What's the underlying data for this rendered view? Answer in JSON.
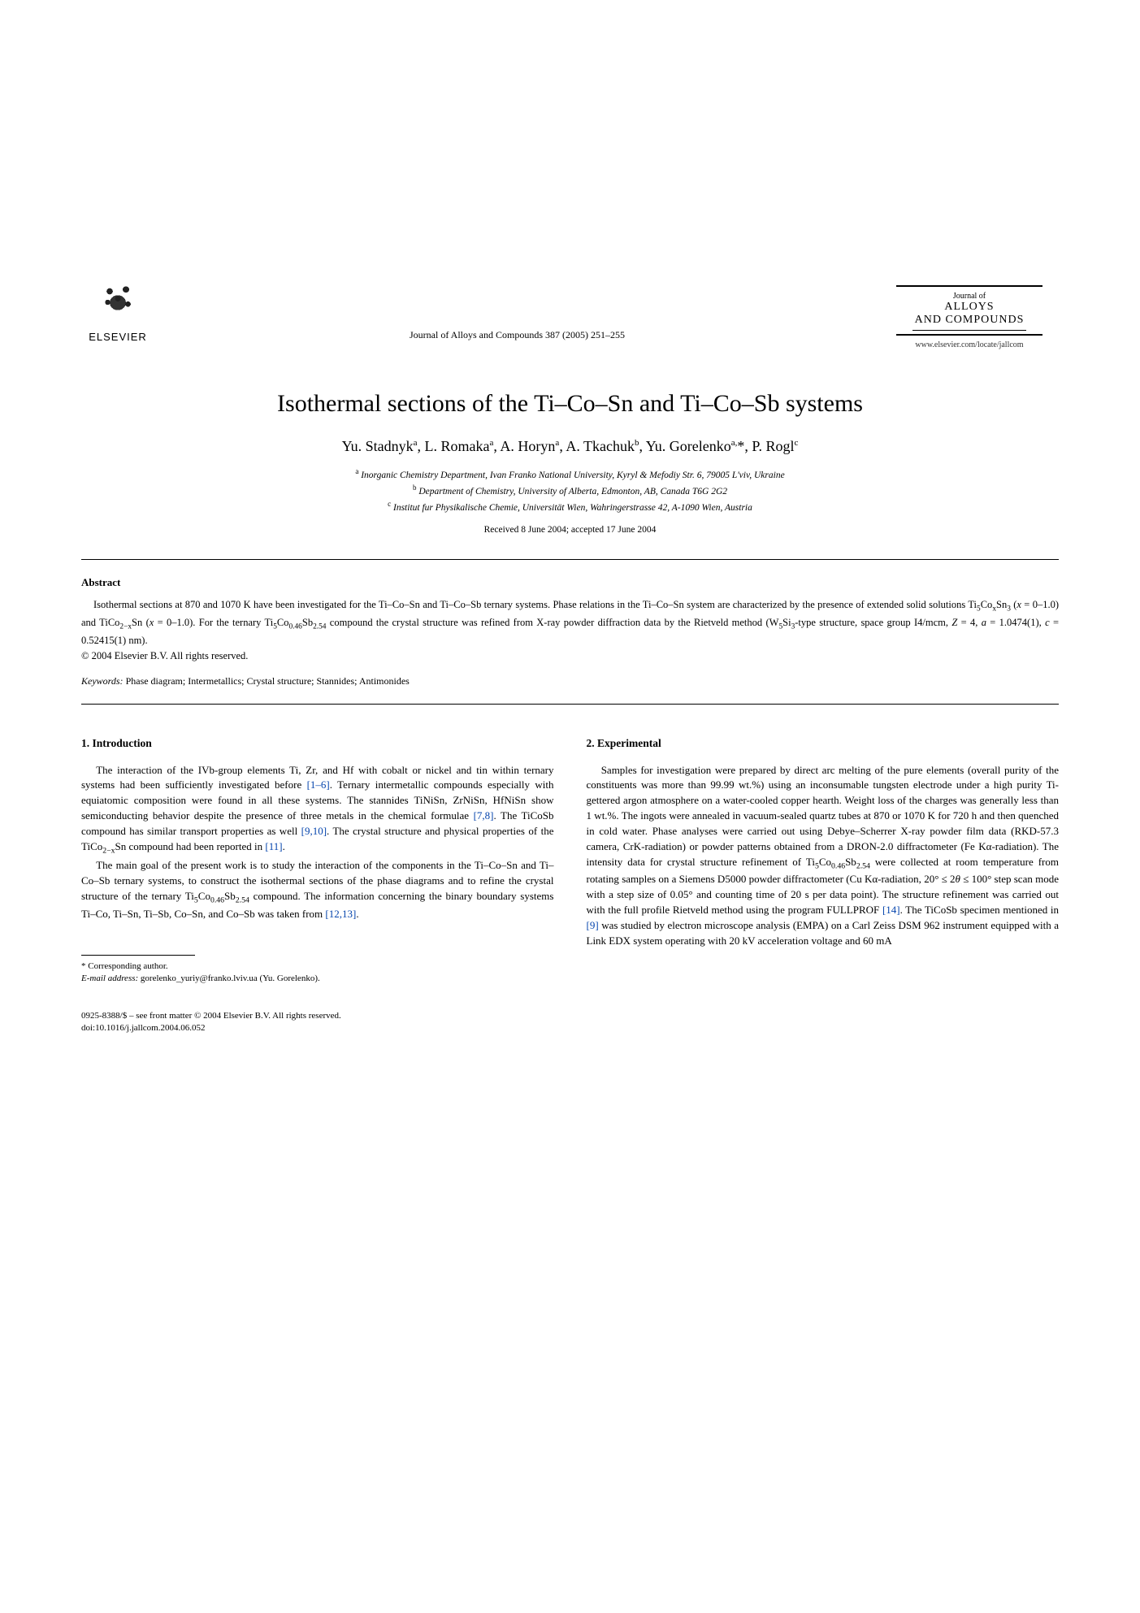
{
  "publisher": {
    "name": "ELSEVIER",
    "citation": "Journal of Alloys and Compounds 387 (2005) 251–255",
    "journal_of": "Journal of",
    "journal_name": "ALLOYS\nAND COMPOUNDS",
    "url": "www.elsevier.com/locate/jallcom"
  },
  "title": "Isothermal sections of the Ti–Co–Sn and Ti–Co–Sb systems",
  "authors_html": "Yu. Stadnyk<sup>a</sup>, L. Romaka<sup>a</sup>, A. Horyn<sup>a</sup>, A. Tkachuk<sup>b</sup>, Yu. Gorelenko<sup>a,</sup>*, P. Rogl<sup>c</sup>",
  "affiliations": {
    "a": "Inorganic Chemistry Department, Ivan Franko National University, Kyryl & Mefodiy Str. 6, 79005 L'viv, Ukraine",
    "b": "Department of Chemistry, University of Alberta, Edmonton, AB, Canada T6G 2G2",
    "c": "Institut fur Physikalische Chemie, Universität Wien, Wahringerstrasse 42, A-1090 Wien, Austria"
  },
  "dates": "Received 8 June 2004; accepted 17 June 2004",
  "abstract": {
    "heading": "Abstract",
    "text_html": "Isothermal sections at 870 and 1070 K have been investigated for the Ti–Co–Sn and Ti–Co–Sb ternary systems. Phase relations in the Ti–Co–Sn system are characterized by the presence of extended solid solutions Ti<sub>5</sub>Co<sub>x</sub>Sn<sub>3</sub> (<i>x</i> = 0–1.0) and TiCo<sub>2−x</sub>Sn (<i>x</i> = 0–1.0). For the ternary Ti<sub>5</sub>Co<sub>0.46</sub>Sb<sub>2.54</sub> compound the crystal structure was refined from X-ray powder diffraction data by the Rietveld method (W<sub>5</sub>Si<sub>3</sub>-type structure, space group I4/mcm, <i>Z</i> = 4, <i>a</i> = 1.0474(1), <i>c</i> = 0.52415(1) nm).",
    "copyright": "© 2004 Elsevier B.V. All rights reserved."
  },
  "keywords": {
    "label": "Keywords:",
    "text": "Phase diagram; Intermetallics; Crystal structure; Stannides; Antimonides"
  },
  "sections": {
    "introduction": {
      "heading": "1. Introduction",
      "p1_html": "The interaction of the IVb-group elements Ti, Zr, and Hf with cobalt or nickel and tin within ternary systems had been sufficiently investigated before <span class=\"ref\">[1–6]</span>. Ternary intermetallic compounds especially with equiatomic composition were found in all these systems. The stannides TiNiSn, ZrNiSn, HfNiSn show semiconducting behavior despite the presence of three metals in the chemical formulae <span class=\"ref\">[7,8]</span>. The TiCoSb compound has similar transport properties as well <span class=\"ref\">[9,10]</span>. The crystal structure and physical properties of the TiCo<sub>2−x</sub>Sn compound had been reported in <span class=\"ref\">[11]</span>.",
      "p2_html": "The main goal of the present work is to study the interaction of the components in the Ti–Co–Sn and Ti–Co–Sb ternary systems, to construct the isothermal sections of the phase diagrams and to refine the crystal structure of the ternary Ti<sub>5</sub>Co<sub>0.46</sub>Sb<sub>2.54</sub> compound. The information concerning the binary boundary systems Ti–Co, Ti–Sn, Ti–Sb, Co–Sn, and Co–Sb was taken from <span class=\"ref\">[12,13]</span>."
    },
    "experimental": {
      "heading": "2. Experimental",
      "p1_html": "Samples for investigation were prepared by direct arc melting of the pure elements (overall purity of the constituents was more than 99.99 wt.%) using an inconsumable tungsten electrode under a high purity Ti-gettered argon atmosphere on a water-cooled copper hearth. Weight loss of the charges was generally less than 1 wt.%. The ingots were annealed in vacuum-sealed quartz tubes at 870 or 1070 K for 720 h and then quenched in cold water. Phase analyses were carried out using Debye–Scherrer X-ray powder film data (RKD-57.3 camera, CrK-radiation) or powder patterns obtained from a DRON-2.0 diffractometer (Fe Kα-radiation). The intensity data for crystal structure refinement of Ti<sub>5</sub>Co<sub>0.46</sub>Sb<sub>2.54</sub> were collected at room temperature from rotating samples on a Siemens D5000 powder diffractometer (Cu Kα-radiation, 20° ≤ 2<i>θ</i> ≤ 100° step scan mode with a step size of 0.05° and counting time of 20 s per data point). The structure refinement was carried out with the full profile Rietveld method using the program FULLPROF <span class=\"ref\">[14]</span>. The TiCoSb specimen mentioned in <span class=\"ref\">[9]</span> was studied by electron microscope analysis (EMPA) on a Carl Zeiss DSM 962 instrument equipped with a Link EDX system operating with 20 kV acceleration voltage and 60 mA"
    }
  },
  "footnote": {
    "corr": "* Corresponding author.",
    "email_label": "E-mail address:",
    "email": "gorelenko_yuriy@franko.lviv.ua",
    "email_who": "(Yu. Gorelenko)."
  },
  "footer": {
    "line1": "0925-8388/$ – see front matter © 2004 Elsevier B.V. All rights reserved.",
    "line2": "doi:10.1016/j.jallcom.2004.06.052"
  }
}
